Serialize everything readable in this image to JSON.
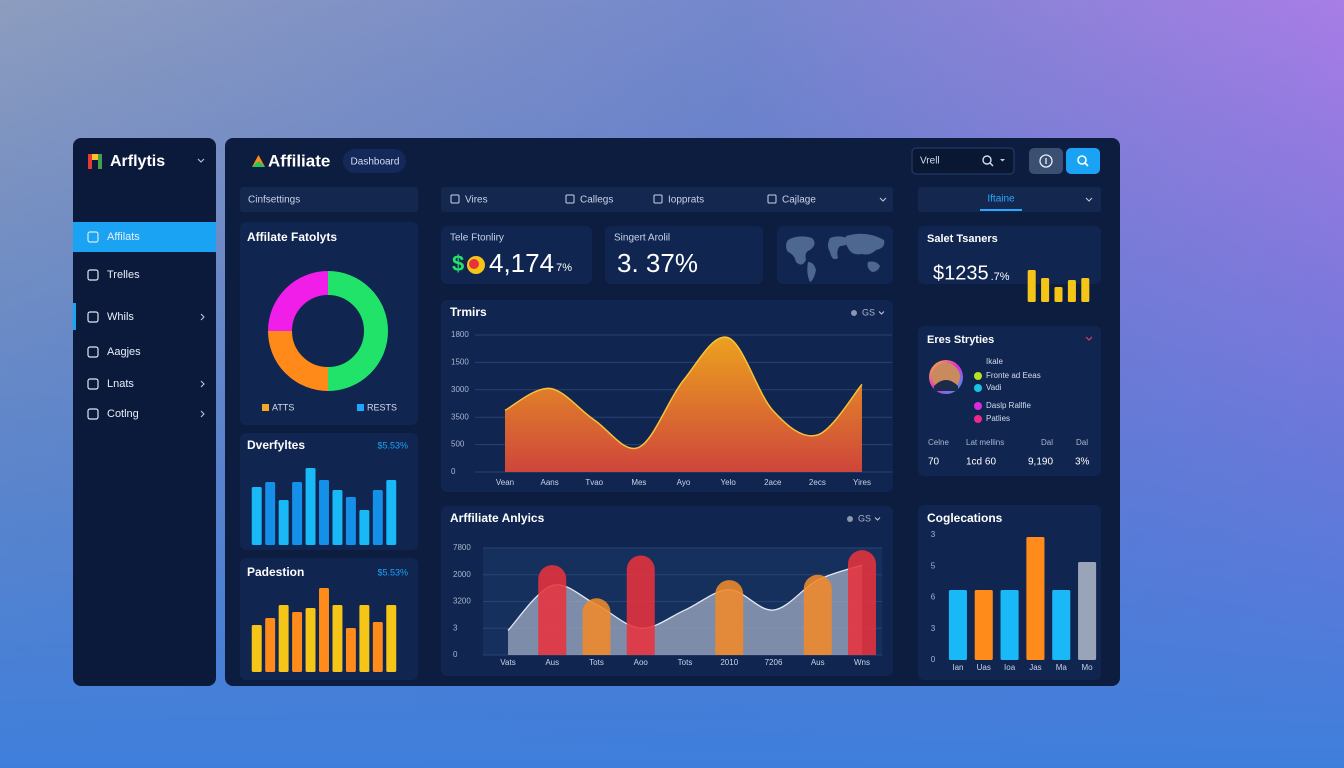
{
  "sidebar": {
    "brand": "Arflytis",
    "items": [
      {
        "label": "Affilats",
        "active": true
      },
      {
        "label": "Trelles"
      },
      {
        "label": "Whils",
        "submenu": true
      },
      {
        "label": "Aagjes"
      },
      {
        "label": "Lnats",
        "submenu": true
      },
      {
        "label": "Cotlng",
        "submenu": true
      }
    ]
  },
  "header": {
    "brand": "Affiliate",
    "tab": "Dashboard",
    "search": "Vrell"
  },
  "filters": {
    "left": "Cinfsettings",
    "tabs": [
      "Vires",
      "Callegs",
      "Iopprats",
      "Cajlage"
    ],
    "right": "Iftaine"
  },
  "kpis": [
    {
      "label": "Tele Ftonliry",
      "icon": "$",
      "value": "4,174",
      "suffix": "7%"
    },
    {
      "label": "Singert Arolil",
      "value": "3. 37%"
    },
    {
      "label": "Salet Tsaners",
      "value": "$1235",
      "suffix": ".7%"
    }
  ],
  "stats": {
    "title": "Eres Stryties",
    "legend": [
      {
        "label": "Ikale"
      },
      {
        "label": "Fronte ad Eeas",
        "color": "#b6e21f"
      },
      {
        "label": "Vadi",
        "color": "#19c3e6"
      },
      {
        "label": "Daslp Rallfie",
        "color": "#d92be0"
      },
      {
        "label": "Patlies",
        "color": "#f0288c"
      }
    ],
    "table": {
      "headers": [
        "Celne",
        "Lat mellins",
        "Dal",
        "Dal"
      ],
      "values": [
        "70",
        "1cd 60",
        "9,190",
        "3%"
      ]
    }
  },
  "chart_data": [
    {
      "type": "donut",
      "title": "Affilate Fatolyts",
      "values": [
        50,
        25,
        25
      ],
      "colors": [
        "#22e36a",
        "#ff8a1a",
        "#f01ee8"
      ],
      "legend": [
        {
          "name": "ATTS",
          "color": "#f5a623"
        },
        {
          "name": "RESTS",
          "color": "#1ea7ff"
        }
      ]
    },
    {
      "type": "bar",
      "title": "Dverfyltes",
      "value_text": "$5.53%",
      "color": "#1ab0f5",
      "colors": [
        "#19b8f7",
        "#1590e8",
        "#19b8f7",
        "#1590e8",
        "#19b8f7",
        "#1590e8",
        "#19b8f7",
        "#1590e8",
        "#19b8f7",
        "#1590e8",
        "#19b8f7"
      ],
      "values": [
        58,
        63,
        45,
        63,
        77,
        65,
        55,
        48,
        35,
        55,
        65
      ],
      "ylim": [
        0,
        100
      ]
    },
    {
      "type": "bar",
      "title": "Padestion",
      "value_text": "$5.53%",
      "colors": [
        "#f5c518",
        "#ff8c1a",
        "#f5c518",
        "#ff8c1a",
        "#f5c518",
        "#ff8c1a",
        "#f5c518",
        "#ff8c1a",
        "#f5c518",
        "#ff8c1a",
        "#f5c518"
      ],
      "values": [
        47,
        54,
        67,
        60,
        64,
        84,
        67,
        44,
        67,
        50,
        67
      ],
      "ylim": [
        0,
        100
      ]
    },
    {
      "type": "area",
      "title": "Trmirs",
      "control": "GS",
      "ylabels": [
        "1800",
        "1500",
        "3000",
        "3500",
        "500",
        "0"
      ],
      "categories": [
        "Vean",
        "Aans",
        "Tvao",
        "Mes",
        "Ayo",
        "Yelo",
        "2ace",
        "2ecs",
        "Yires"
      ],
      "values": [
        45,
        61,
        38,
        18,
        67,
        98,
        45,
        27,
        64
      ],
      "ylim": [
        0,
        100
      ]
    },
    {
      "type": "combo",
      "title": "Arffiliate Anlyics",
      "control": "GS",
      "ylabels": [
        "7800",
        "2000",
        "3200",
        "3",
        "0"
      ],
      "categories": [
        "Vats",
        "Aus",
        "Tots",
        "Aoo",
        "Tots",
        "2010",
        "7206",
        "Aus",
        "Wns"
      ],
      "series": [
        {
          "color": "#a9b3c7",
          "values": [
            23,
            65,
            47,
            25,
            42,
            61,
            42,
            70,
            84
          ]
        },
        {
          "colors": [
            null,
            "#e8323c",
            "#f08a2a",
            "#e8323c",
            null,
            "#f08a2a",
            null,
            "#f08a2a",
            "#e8323c"
          ],
          "values": [
            null,
            84,
            53,
            93,
            null,
            70,
            null,
            75,
            98
          ]
        }
      ],
      "ylim": [
        0,
        100
      ]
    },
    {
      "type": "bar",
      "title": "Coglecations",
      "ylabels": [
        "3",
        "5",
        "6",
        "3",
        "0"
      ],
      "categories": [
        "Ian",
        "Uas",
        "Ioa",
        "Jas",
        "Ma",
        "Mo"
      ],
      "colors": [
        "#19b8f7",
        "#ff8c1a",
        "#19b8f7",
        "#ff8c1a",
        "#19b8f7",
        "#9aa4b8"
      ],
      "values": [
        70,
        70,
        70,
        123,
        70,
        98
      ],
      "ylim": [
        0,
        125
      ]
    },
    {
      "type": "bar",
      "color": "#f5c518",
      "values": [
        32,
        24,
        15,
        22,
        24
      ],
      "ylim": [
        0,
        40
      ]
    }
  ]
}
